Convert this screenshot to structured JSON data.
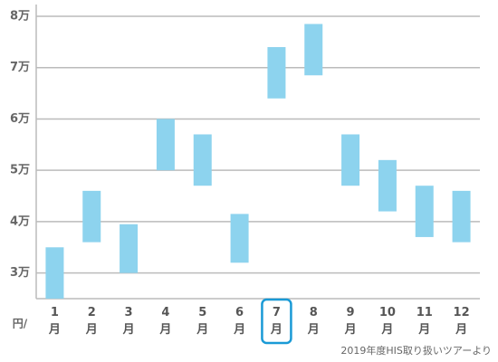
{
  "chart_data": {
    "type": "floating-bar",
    "categories": [
      "1月",
      "2月",
      "3月",
      "4月",
      "5月",
      "6月",
      "7月",
      "8月",
      "9月",
      "10月",
      "11月",
      "12月"
    ],
    "low": [
      2.5,
      3.6,
      3.0,
      5.0,
      4.7,
      3.2,
      6.4,
      6.85,
      4.7,
      4.2,
      3.7,
      3.6
    ],
    "high": [
      3.5,
      4.6,
      3.95,
      6.0,
      5.7,
      4.15,
      7.4,
      7.85,
      5.7,
      5.2,
      4.7,
      4.6
    ],
    "color": "#8dd3ee",
    "ylim": [
      2.5,
      8
    ],
    "yticks": [
      {
        "value": 3,
        "label": "3万"
      },
      {
        "value": 4,
        "label": "4万"
      },
      {
        "value": 5,
        "label": "5万"
      },
      {
        "value": 6,
        "label": "6万"
      },
      {
        "value": 7,
        "label": "7万"
      },
      {
        "value": 8,
        "label": "8万"
      }
    ],
    "grid": true,
    "y_unit_label": "円/",
    "highlighted_category": 6,
    "highlight_color": "#1a9ad6",
    "note": "2019年度HIS取り扱いツアーより"
  }
}
